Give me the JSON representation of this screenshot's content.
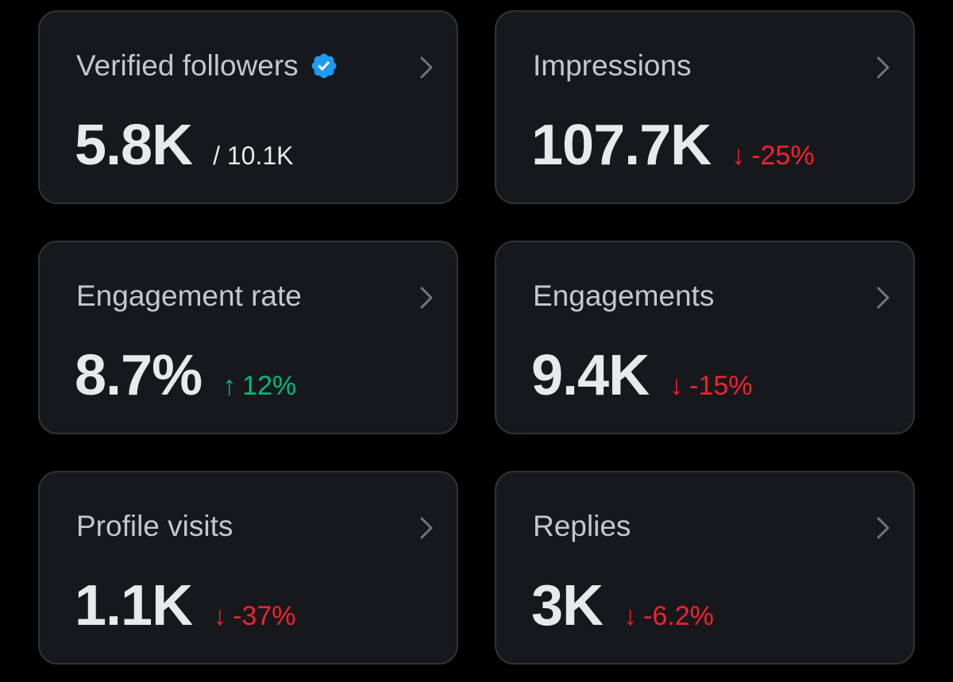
{
  "colors": {
    "background": "#000000",
    "card": "#16181c",
    "card_border": "#2f3336",
    "title": "#c4c8cc",
    "value": "#e7e9ea",
    "negative": "#f4212e",
    "positive": "#00ba7c",
    "verified": "#1d9bf0"
  },
  "cards": [
    {
      "title": "Verified followers",
      "icon": "verified-badge-icon",
      "value": "5.8K",
      "sub_value": "/ 10.1K"
    },
    {
      "title": "Impressions",
      "value": "107.7K",
      "delta_arrow": "↓",
      "delta": "-25%",
      "trend": "down"
    },
    {
      "title": "Engagement rate",
      "value": "8.7%",
      "delta_arrow": "↑",
      "delta": "12%",
      "trend": "up"
    },
    {
      "title": "Engagements",
      "value": "9.4K",
      "delta_arrow": "↓",
      "delta": "-15%",
      "trend": "down"
    },
    {
      "title": "Profile visits",
      "value": "1.1K",
      "delta_arrow": "↓",
      "delta": "-37%",
      "trend": "down"
    },
    {
      "title": "Replies",
      "value": "3K",
      "delta_arrow": "↓",
      "delta": "-6.2%",
      "trend": "down"
    }
  ]
}
